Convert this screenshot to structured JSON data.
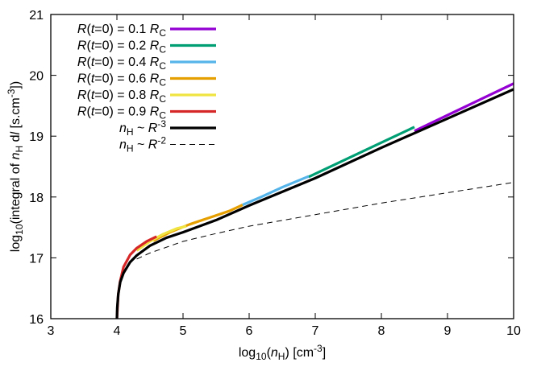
{
  "chart_data": {
    "type": "line",
    "xlabel": {
      "pre": "log",
      "sub": "10",
      "mid": "(",
      "var": "n",
      "varsub": "H",
      "post": ") [cm",
      "sup": "-3",
      "end": "]"
    },
    "ylabel": {
      "pre": "log",
      "sub": "10",
      "mid": "(integral of ",
      "var": "n",
      "varsub": "H",
      "mid2": " d",
      "var2": "l",
      "post": " [s.cm",
      "sup": "-3",
      "end": "])"
    },
    "xlim": [
      3,
      10
    ],
    "ylim": [
      16,
      21
    ],
    "xticks": [
      "3",
      "4",
      "5",
      "6",
      "7",
      "8",
      "9",
      "10"
    ],
    "yticks": [
      "16",
      "17",
      "18",
      "19",
      "20",
      "21"
    ],
    "grid": false,
    "legend_position": "top-left",
    "series": [
      {
        "name": {
          "a": "R",
          "b": "(",
          "c": "t",
          "d": "=0) = 0.1 ",
          "e": "R",
          "f": "C"
        },
        "color": "#9400d3",
        "style": "solid",
        "x": [
          8.5,
          9.0,
          9.5,
          10.0
        ],
        "y": [
          19.085,
          19.345,
          19.605,
          19.865
        ]
      },
      {
        "name": {
          "a": "R",
          "b": "(",
          "c": "t",
          "d": "=0) = 0.2 ",
          "e": "R",
          "f": "C"
        },
        "color": "#009e73",
        "style": "solid",
        "x": [
          6.9,
          7.3,
          7.7,
          8.1,
          8.5
        ],
        "y": [
          18.33,
          18.535,
          18.74,
          18.945,
          19.15
        ]
      },
      {
        "name": {
          "a": "R",
          "b": "(",
          "c": "t",
          "d": "=0) = 0.4 ",
          "e": "R",
          "f": "C"
        },
        "color": "#56b4e9",
        "style": "solid",
        "x": [
          5.9,
          6.2,
          6.5,
          6.9
        ],
        "y": [
          17.87,
          18.01,
          18.16,
          18.34
        ]
      },
      {
        "name": {
          "a": "R",
          "b": "(",
          "c": "t",
          "d": "=0) = 0.6 ",
          "e": "R",
          "f": "C"
        },
        "color": "#e69f00",
        "style": "solid",
        "x": [
          4.55,
          4.8,
          5.1,
          5.4,
          5.7,
          5.9
        ],
        "y": [
          17.28,
          17.42,
          17.55,
          17.66,
          17.77,
          17.87
        ]
      },
      {
        "name": {
          "a": "R",
          "b": "(",
          "c": "t",
          "d": "=0) = 0.8 ",
          "e": "R",
          "f": "C"
        },
        "color": "#f0e442",
        "style": "solid",
        "x": [
          4.3,
          4.5,
          4.7,
          4.9,
          5.05
        ],
        "y": [
          17.12,
          17.27,
          17.39,
          17.48,
          17.52
        ]
      },
      {
        "name": {
          "a": "R",
          "b": "(",
          "c": "t",
          "d": "=0) = 0.9 ",
          "e": "R",
          "f": "C"
        },
        "color": "#d62728",
        "style": "solid",
        "x": [
          4.0,
          4.02,
          4.05,
          4.1,
          4.2,
          4.3,
          4.45,
          4.6
        ],
        "y": [
          16.0,
          16.4,
          16.62,
          16.85,
          17.05,
          17.16,
          17.27,
          17.35
        ]
      },
      {
        "name": {
          "a": "n",
          "asub": "H",
          "d": " ~ ",
          "e": "R",
          "sup": "-3"
        },
        "color": "#000000",
        "style": "solid",
        "x": [
          4.0,
          4.005,
          4.02,
          4.05,
          4.1,
          4.2,
          4.3,
          4.5,
          4.75,
          5.0,
          5.5,
          6.0,
          7.0,
          8.0,
          9.0,
          10.0
        ],
        "y": [
          16.0,
          16.18,
          16.4,
          16.6,
          16.75,
          16.93,
          17.04,
          17.2,
          17.33,
          17.42,
          17.62,
          17.86,
          18.31,
          18.81,
          19.29,
          19.77
        ]
      },
      {
        "name": {
          "a": "n",
          "asub": "H",
          "d": " ~ ",
          "e": "R",
          "sup": "-2"
        },
        "color": "#000000",
        "style": "dashed",
        "x": [
          4.3,
          4.5,
          5.0,
          5.5,
          6.0,
          7.0,
          8.0,
          9.0,
          10.0
        ],
        "y": [
          16.98,
          17.08,
          17.27,
          17.4,
          17.52,
          17.71,
          17.9,
          18.07,
          18.24
        ]
      }
    ]
  }
}
